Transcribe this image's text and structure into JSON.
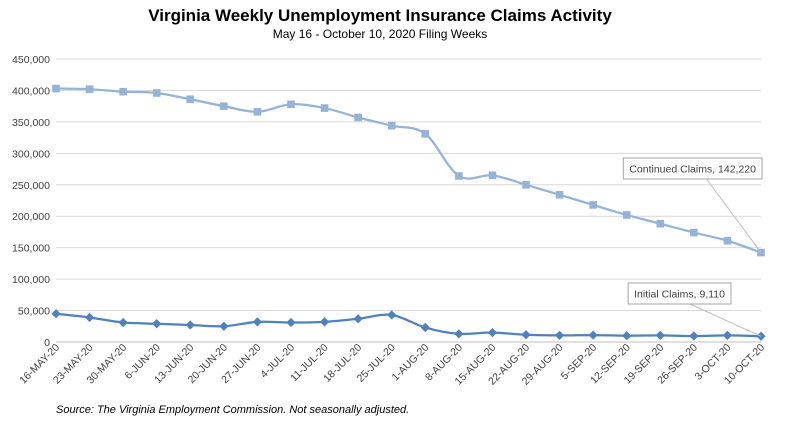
{
  "chart_data": {
    "type": "line",
    "title": "Virginia Weekly Unemployment Insurance Claims Activity",
    "subtitle": "May 16 - October 10, 2020 Filing Weeks",
    "xlabel": "",
    "ylabel": "",
    "ylim": [
      0,
      450000
    ],
    "yticks": [
      0,
      50000,
      100000,
      150000,
      200000,
      250000,
      300000,
      350000,
      400000,
      450000
    ],
    "ytick_labels": [
      "0",
      "50,000",
      "100,000",
      "150,000",
      "200,000",
      "250,000",
      "300,000",
      "350,000",
      "400,000",
      "450,000"
    ],
    "grid": true,
    "categories": [
      "16-MAY-20",
      "23-MAY-20",
      "30-MAY-20",
      "6-JUN-20",
      "13-JUN-20",
      "20-JUN-20",
      "27-JUN-20",
      "4-JUL-20",
      "11-JUL-20",
      "18-JUL-20",
      "25-JUL-20",
      "1-AUG-20",
      "8-AUG-20",
      "15-AUG-20",
      "22-AUG-20",
      "29-AUG-20",
      "5-SEP-20",
      "12-SEP-20",
      "19-SEP-20",
      "26-SEP-20",
      "3-OCT-20",
      "10-OCT-20"
    ],
    "series": [
      {
        "name": "Continued Claims",
        "color": "#95b3d7",
        "marker": "square",
        "values": [
          403000,
          402000,
          398000,
          396000,
          386000,
          375000,
          366000,
          378000,
          372000,
          357000,
          344000,
          331000,
          264000,
          265000,
          250000,
          234000,
          218000,
          202000,
          188000,
          174000,
          161000,
          142220
        ]
      },
      {
        "name": "Initial Claims",
        "color": "#4f81bd",
        "marker": "diamond",
        "values": [
          45000,
          39000,
          31000,
          29000,
          27000,
          25000,
          32000,
          31000,
          32000,
          37000,
          43000,
          23000,
          13000,
          15000,
          11500,
          10500,
          11000,
          10000,
          10500,
          9500,
          10500,
          9110
        ]
      }
    ],
    "annotations": [
      {
        "series": "Continued Claims",
        "text": "Continued Claims, 142,220"
      },
      {
        "series": "Initial Claims",
        "text": "Initial Claims, 9,110"
      }
    ]
  },
  "footer": {
    "source": "Source: The Virginia Employment Commission. Not seasonally adjusted."
  }
}
